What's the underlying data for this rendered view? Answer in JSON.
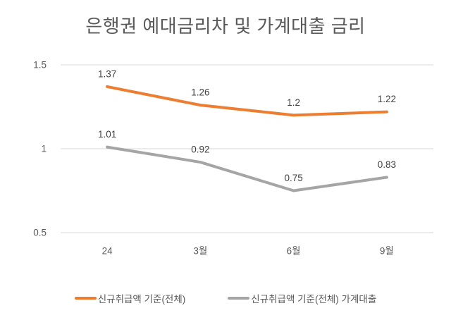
{
  "chart_data": {
    "type": "line",
    "title": "은행권 예대금리차 및 가계대출 금리",
    "categories": [
      "24",
      "3월",
      "6월",
      "9월"
    ],
    "series": [
      {
        "name": "신규취급액 기준(전체)",
        "values": [
          1.37,
          1.26,
          1.2,
          1.22
        ],
        "color": "#ED7D31"
      },
      {
        "name": "신규취급액 기준(전체) 가계대출",
        "values": [
          1.01,
          0.92,
          0.75,
          0.83
        ],
        "color": "#A5A5A5"
      }
    ],
    "xlabel": "",
    "ylabel": "",
    "ylim": [
      0.5,
      1.5
    ],
    "yticks": [
      0.5,
      1,
      1.5
    ],
    "ytick_labels": [
      "0.5",
      "1",
      "1.5"
    ],
    "grid": true,
    "data_labels": true,
    "legend_position": "bottom"
  },
  "colors": {
    "background": "#FFFFFF",
    "title_text": "#595959",
    "axis_text": "#595959",
    "data_label_text": "#404040",
    "gridline": "#D9D9D9",
    "series_orange": "#ED7D31",
    "series_gray": "#A5A5A5"
  }
}
